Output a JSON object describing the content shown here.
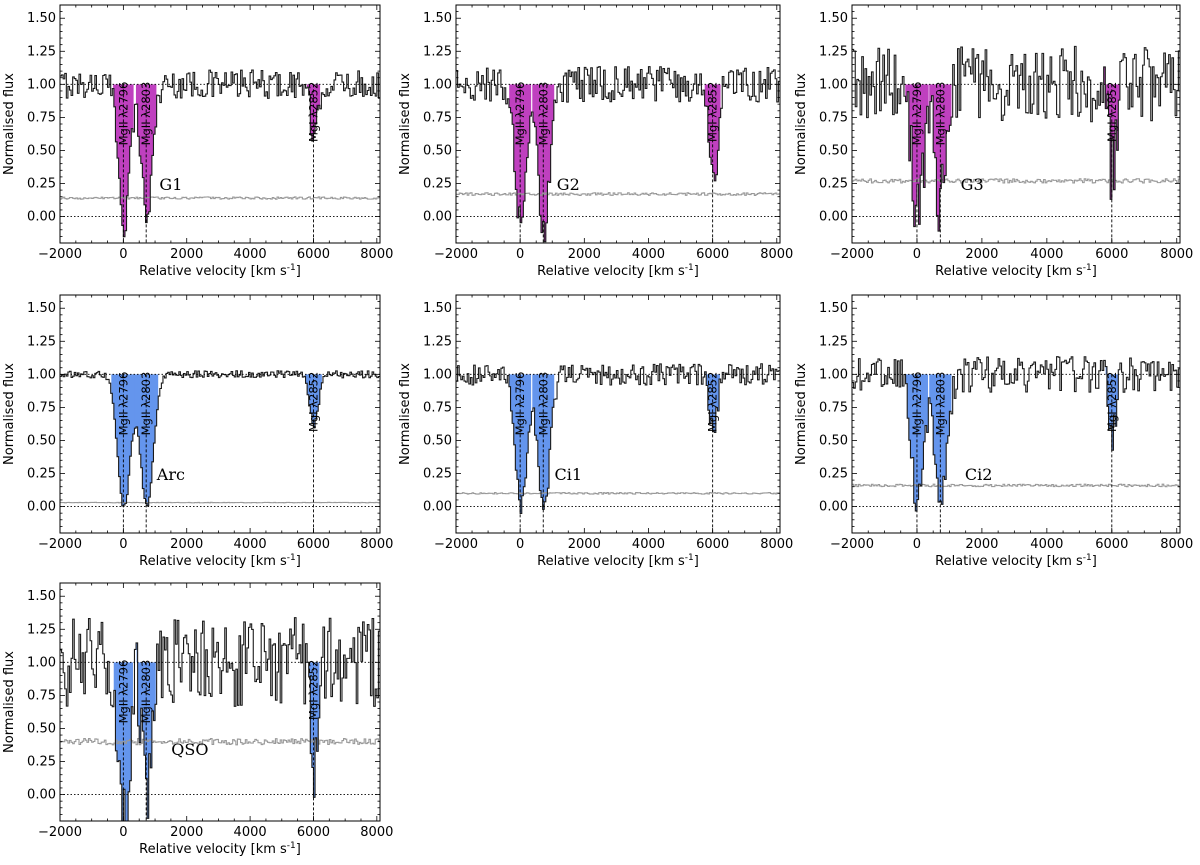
{
  "chart_data": [
    {
      "type": "line",
      "panel": "G1",
      "label": "G1",
      "fill_color": "#bf40bf",
      "label_pos": [
        1500,
        0.2
      ],
      "xlabel": "Relative velocity [km s$^{-1}$]",
      "ylabel": "Normalised flux",
      "xlim": [
        -2000,
        8100
      ],
      "ylim": [
        -0.2,
        1.6
      ],
      "xticks": [
        -2000,
        0,
        2000,
        4000,
        6000,
        8000
      ],
      "yticks": [
        0.0,
        0.25,
        0.5,
        0.75,
        1.0,
        1.25,
        1.5
      ],
      "noise": 0.12,
      "error_level": 0.14,
      "lines": [
        {
          "name": "MgII λ2796",
          "velocity": 0,
          "depth": 1.05,
          "width": 170
        },
        {
          "name": "MgII λ2803",
          "velocity": 720,
          "depth": 1.0,
          "width": 170
        },
        {
          "name": "MgI λ2852",
          "velocity": 6000,
          "depth": 0.45,
          "width": 110
        }
      ]
    },
    {
      "type": "line",
      "panel": "G2",
      "label": "G2",
      "fill_color": "#bf40bf",
      "label_pos": [
        1500,
        0.2
      ],
      "xlabel": "Relative velocity [km s$^{-1}$]",
      "ylabel": "Normalised flux",
      "xlim": [
        -2000,
        8100
      ],
      "ylim": [
        -0.2,
        1.6
      ],
      "xticks": [
        -2000,
        0,
        2000,
        4000,
        6000,
        8000
      ],
      "yticks": [
        0.0,
        0.25,
        0.5,
        0.75,
        1.0,
        1.25,
        1.5
      ],
      "noise": 0.15,
      "error_level": 0.17,
      "lines": [
        {
          "name": "MgII λ2796",
          "velocity": 0,
          "depth": 1.1,
          "width": 180
        },
        {
          "name": "MgII λ2803",
          "velocity": 720,
          "depth": 1.1,
          "width": 180
        },
        {
          "name": "MgI λ2852",
          "velocity": 6000,
          "depth": 0.75,
          "width": 130
        }
      ]
    },
    {
      "type": "line",
      "panel": "G3",
      "label": "G3",
      "fill_color": "#bf40bf",
      "label_pos": [
        1700,
        0.2
      ],
      "xlabel": "Relative velocity [km s$^{-1}$]",
      "ylabel": "Normalised flux",
      "xlim": [
        -2000,
        8100
      ],
      "ylim": [
        -0.2,
        1.6
      ],
      "xticks": [
        -2000,
        0,
        2000,
        4000,
        6000,
        8000
      ],
      "yticks": [
        0.0,
        0.25,
        0.5,
        0.75,
        1.0,
        1.25,
        1.5
      ],
      "noise": 0.32,
      "error_level": 0.27,
      "lines": [
        {
          "name": "MgII λ2796",
          "velocity": 0,
          "depth": 0.95,
          "width": 190
        },
        {
          "name": "MgII λ2803",
          "velocity": 720,
          "depth": 0.9,
          "width": 180
        },
        {
          "name": "MgI λ2852",
          "velocity": 6000,
          "depth": 0.65,
          "width": 130
        }
      ]
    },
    {
      "type": "line",
      "panel": "Arc",
      "label": "Arc",
      "fill_color": "#6495ed",
      "label_pos": [
        1500,
        0.2
      ],
      "xlabel": "Relative velocity [km s$^{-1}$]",
      "ylabel": "Normalised flux",
      "xlim": [
        -2000,
        8100
      ],
      "ylim": [
        -0.2,
        1.6
      ],
      "xticks": [
        -2000,
        0,
        2000,
        4000,
        6000,
        8000
      ],
      "yticks": [
        0.0,
        0.25,
        0.5,
        0.75,
        1.0,
        1.25,
        1.5
      ],
      "noise": 0.03,
      "error_level": 0.03,
      "lines": [
        {
          "name": "MgII λ2796",
          "velocity": 0,
          "depth": 1.0,
          "width": 200
        },
        {
          "name": "MgII λ2803",
          "velocity": 720,
          "depth": 1.0,
          "width": 200
        },
        {
          "name": "MgI λ2852",
          "velocity": 6000,
          "depth": 0.38,
          "width": 140
        }
      ]
    },
    {
      "type": "line",
      "panel": "Ci1",
      "label": "Ci1",
      "fill_color": "#6495ed",
      "label_pos": [
        1500,
        0.2
      ],
      "xlabel": "Relative velocity [km s$^{-1}$]",
      "ylabel": "Normalised flux",
      "xlim": [
        -2000,
        8100
      ],
      "ylim": [
        -0.2,
        1.6
      ],
      "xticks": [
        -2000,
        0,
        2000,
        4000,
        6000,
        8000
      ],
      "yticks": [
        0.0,
        0.25,
        0.5,
        0.75,
        1.0,
        1.25,
        1.5
      ],
      "noise": 0.09,
      "error_level": 0.1,
      "lines": [
        {
          "name": "MgII λ2796",
          "velocity": 0,
          "depth": 1.0,
          "width": 180
        },
        {
          "name": "MgII λ2803",
          "velocity": 720,
          "depth": 1.05,
          "width": 180
        },
        {
          "name": "MgI λ2852",
          "velocity": 6000,
          "depth": 0.45,
          "width": 120
        }
      ]
    },
    {
      "type": "line",
      "panel": "Ci2",
      "label": "Ci2",
      "fill_color": "#6495ed",
      "label_pos": [
        1900,
        0.2
      ],
      "xlabel": "Relative velocity [km s$^{-1}$]",
      "ylabel": "Normalised flux",
      "xlim": [
        -2000,
        8100
      ],
      "ylim": [
        -0.2,
        1.6
      ],
      "xticks": [
        -2000,
        0,
        2000,
        4000,
        6000,
        8000
      ],
      "yticks": [
        0.0,
        0.25,
        0.5,
        0.75,
        1.0,
        1.25,
        1.5
      ],
      "noise": 0.15,
      "error_level": 0.16,
      "lines": [
        {
          "name": "MgII λ2796",
          "velocity": 0,
          "depth": 1.0,
          "width": 180
        },
        {
          "name": "MgII λ2803",
          "velocity": 720,
          "depth": 1.0,
          "width": 180
        },
        {
          "name": "MgI λ2852",
          "velocity": 6000,
          "depth": 0.5,
          "width": 100
        }
      ]
    },
    {
      "type": "line",
      "panel": "QSO",
      "label": "QSO",
      "fill_color": "#6495ed",
      "label_pos": [
        2100,
        0.3
      ],
      "xlabel": "Relative velocity [km s$^{-1}$]",
      "ylabel": "Normalised flux",
      "xlim": [
        -2000,
        8100
      ],
      "ylim": [
        -0.2,
        1.6
      ],
      "xticks": [
        -2000,
        0,
        2000,
        4000,
        6000,
        8000
      ],
      "yticks": [
        0.0,
        0.25,
        0.5,
        0.75,
        1.0,
        1.25,
        1.5
      ],
      "noise": 0.38,
      "error_level": 0.4,
      "lines": [
        {
          "name": "MgII λ2796",
          "velocity": 0,
          "depth": 1.2,
          "width": 160
        },
        {
          "name": "MgII λ2803",
          "velocity": 720,
          "depth": 1.0,
          "width": 160
        },
        {
          "name": "MgI λ2852",
          "velocity": 6000,
          "depth": 0.85,
          "width": 100
        }
      ]
    }
  ]
}
